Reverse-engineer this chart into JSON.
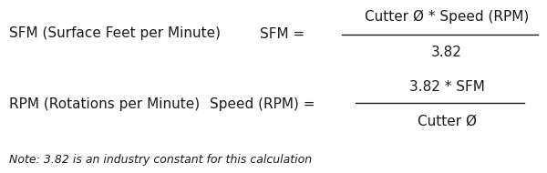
{
  "bg_color": "#ffffff",
  "text_color": "#1a1a1a",
  "formula1_label": "SFM (Surface Feet per Minute)",
  "formula1_eq": "SFM =",
  "formula1_numerator": "Cutter Ø * Speed (RPM)",
  "formula1_denominator": "3.82",
  "formula2_label": "RPM (Rotations per Minute)",
  "formula2_eq": "Speed (RPM) =",
  "formula2_numerator": "3.82 * SFM",
  "formula2_denominator": "Cutter Ø",
  "note": "Note: 3.82 is an industry constant for this calculation",
  "font_size_main": 11,
  "font_size_note": 9,
  "line_color": "#1a1a1a",
  "fig_w": 6.0,
  "fig_h": 1.9,
  "dpi": 100
}
